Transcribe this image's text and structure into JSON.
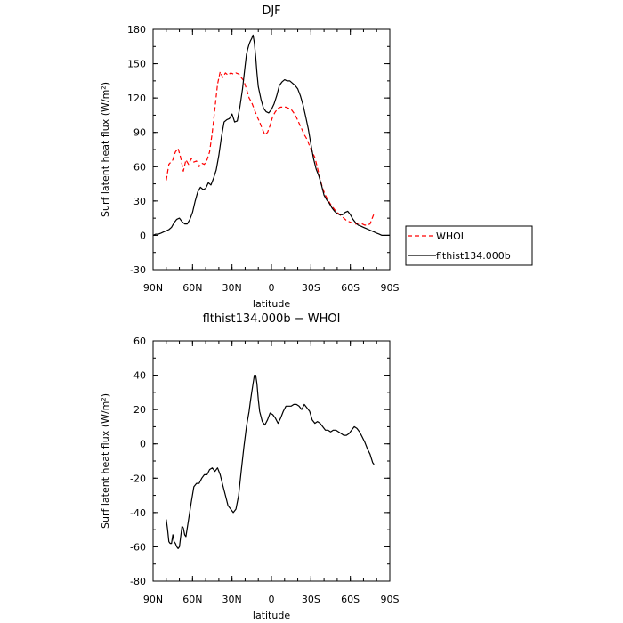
{
  "chart_data": [
    {
      "type": "line",
      "title": "DJF",
      "xlabel": "latitude",
      "ylabel": "Surf latent heat flux (W/m²)",
      "xlim": [
        90,
        -90
      ],
      "ylim": [
        -30,
        180
      ],
      "x_ticks": [
        90,
        60,
        30,
        0,
        -30,
        -60,
        -90
      ],
      "x_tick_labels": [
        "90N",
        "60N",
        "30N",
        "0",
        "30S",
        "60S",
        "90S"
      ],
      "y_ticks": [
        -30,
        0,
        30,
        60,
        90,
        120,
        150,
        180
      ],
      "y_tick_labels": [
        "-30",
        "0",
        "30",
        "60",
        "90",
        "120",
        "150",
        "180"
      ],
      "legend": {
        "placement": "outside-right"
      },
      "series": [
        {
          "name": "WHOI",
          "color": "#ff0000",
          "dash": "dashed",
          "x": [
            80,
            78,
            75,
            73,
            71,
            69,
            67,
            65,
            63,
            61,
            59,
            57,
            55,
            53,
            51,
            49,
            47,
            45,
            43,
            41,
            39,
            37,
            35,
            33,
            31,
            29,
            27,
            25,
            23,
            21,
            19,
            17,
            15,
            13,
            11,
            9,
            7,
            5,
            3,
            1,
            -1,
            -3,
            -5,
            -7,
            -9,
            -11,
            -13,
            -15,
            -17,
            -19,
            -21,
            -23,
            -25,
            -27,
            -29,
            -31,
            -33,
            -35,
            -37,
            -39,
            -41,
            -43,
            -45,
            -47,
            -49,
            -51,
            -53,
            -55,
            -57,
            -59,
            -61,
            -63,
            -65,
            -67,
            -69,
            -71,
            -73,
            -75,
            -77,
            -78
          ],
          "values": [
            48,
            62,
            66,
            73,
            76,
            68,
            56,
            66,
            62,
            67,
            64,
            65,
            60,
            63,
            62,
            66,
            73,
            90,
            111,
            132,
            143,
            138,
            142,
            140,
            142,
            141,
            142,
            141,
            138,
            135,
            128,
            120,
            116,
            110,
            104,
            99,
            93,
            88,
            90,
            96,
            104,
            108,
            111,
            112,
            112,
            112,
            111,
            110,
            107,
            103,
            98,
            93,
            88,
            84,
            78,
            73,
            68,
            59,
            49,
            41,
            35,
            31,
            27,
            24,
            21,
            19,
            17,
            15,
            13,
            12,
            11,
            10,
            10,
            11,
            10,
            9,
            9,
            10,
            16,
            19
          ]
        },
        {
          "name": "flthist134.000b",
          "color": "#000000",
          "dash": "solid",
          "x": [
            90,
            88,
            86,
            84,
            82,
            80,
            78,
            76,
            74,
            72,
            70,
            68,
            66,
            64,
            62,
            60,
            58,
            56,
            54,
            52,
            50,
            48,
            46,
            44,
            42,
            40,
            38,
            36,
            34,
            32,
            30,
            28,
            26,
            24,
            22,
            20,
            19,
            18,
            17,
            16,
            15,
            14,
            13,
            12,
            11,
            10,
            8,
            6,
            4,
            2,
            0,
            -2,
            -4,
            -6,
            -8,
            -10,
            -12,
            -14,
            -16,
            -18,
            -20,
            -22,
            -24,
            -26,
            -28,
            -30,
            -32,
            -34,
            -36,
            -38,
            -40,
            -42,
            -44,
            -46,
            -48,
            -50,
            -52,
            -54,
            -56,
            -58,
            -60,
            -62,
            -64,
            -66,
            -68,
            -70,
            -72,
            -74,
            -76,
            -78,
            -80,
            -82,
            -84,
            -86,
            -88,
            -90
          ],
          "values": [
            0,
            1,
            1,
            2,
            3,
            4,
            5,
            7,
            11,
            14,
            15,
            12,
            10,
            10,
            14,
            20,
            30,
            38,
            42,
            40,
            41,
            46,
            44,
            50,
            57,
            70,
            86,
            99,
            101,
            102,
            106,
            99,
            100,
            112,
            128,
            148,
            158,
            163,
            167,
            170,
            172,
            175,
            168,
            156,
            142,
            130,
            119,
            111,
            108,
            107,
            110,
            115,
            122,
            131,
            134,
            136,
            135,
            135,
            133,
            131,
            128,
            122,
            114,
            104,
            93,
            80,
            67,
            58,
            52,
            44,
            35,
            31,
            28,
            24,
            21,
            19,
            18,
            18,
            20,
            21,
            18,
            14,
            11,
            9,
            8,
            7,
            6,
            5,
            4,
            3,
            2,
            1,
            0,
            0,
            0,
            0
          ]
        }
      ]
    },
    {
      "type": "line",
      "title": "flthist134.000b − WHOI",
      "xlabel": "latitude",
      "ylabel": "Surf latent heat flux (W/m²)",
      "xlim": [
        90,
        -90
      ],
      "ylim": [
        -80,
        60
      ],
      "x_ticks": [
        90,
        60,
        30,
        0,
        -30,
        -60,
        -90
      ],
      "x_tick_labels": [
        "90N",
        "60N",
        "30N",
        "0",
        "30S",
        "60S",
        "90S"
      ],
      "y_ticks": [
        -80,
        -60,
        -40,
        -20,
        0,
        20,
        40,
        60
      ],
      "y_tick_labels": [
        "-80",
        "-60",
        "-40",
        "-20",
        "0",
        "20",
        "40",
        "60"
      ],
      "series": [
        {
          "name": "",
          "color": "#000000",
          "dash": "solid",
          "x": [
            80,
            79,
            78,
            77,
            76,
            75,
            74,
            73,
            72,
            71,
            70,
            69,
            68,
            67,
            66,
            65,
            63,
            61,
            59,
            57,
            55,
            53,
            51,
            49,
            47,
            45,
            43,
            41,
            39,
            37,
            35,
            33,
            31,
            29,
            27,
            25,
            23,
            21,
            19,
            17,
            16,
            15,
            14,
            13,
            12,
            11,
            10,
            9,
            7,
            5,
            3,
            1,
            -1,
            -3,
            -5,
            -7,
            -9,
            -11,
            -13,
            -15,
            -17,
            -19,
            -21,
            -23,
            -25,
            -27,
            -29,
            -31,
            -33,
            -35,
            -37,
            -39,
            -41,
            -43,
            -45,
            -47,
            -49,
            -51,
            -53,
            -55,
            -57,
            -59,
            -61,
            -63,
            -65,
            -67,
            -69,
            -71,
            -73,
            -75,
            -77,
            -78
          ],
          "values": [
            -44,
            -50,
            -57,
            -58,
            -58,
            -53,
            -57,
            -58,
            -60,
            -61,
            -60,
            -54,
            -48,
            -49,
            -53,
            -54,
            -44,
            -34,
            -25,
            -23,
            -23,
            -20,
            -18,
            -18,
            -15,
            -14,
            -16,
            -14,
            -18,
            -24,
            -30,
            -36,
            -38,
            -40,
            -38,
            -30,
            -16,
            -2,
            10,
            19,
            25,
            30,
            35,
            40,
            40,
            35,
            26,
            19,
            13,
            11,
            14,
            18,
            17,
            15,
            12,
            15,
            19,
            22,
            22,
            22,
            23,
            23,
            22,
            20,
            23,
            21,
            19,
            14,
            12,
            13,
            12,
            10,
            8,
            8,
            7,
            8,
            8,
            7,
            6,
            5,
            5,
            6,
            8,
            10,
            9,
            7,
            4,
            1,
            -3,
            -6,
            -11,
            -12
          ]
        }
      ]
    }
  ]
}
